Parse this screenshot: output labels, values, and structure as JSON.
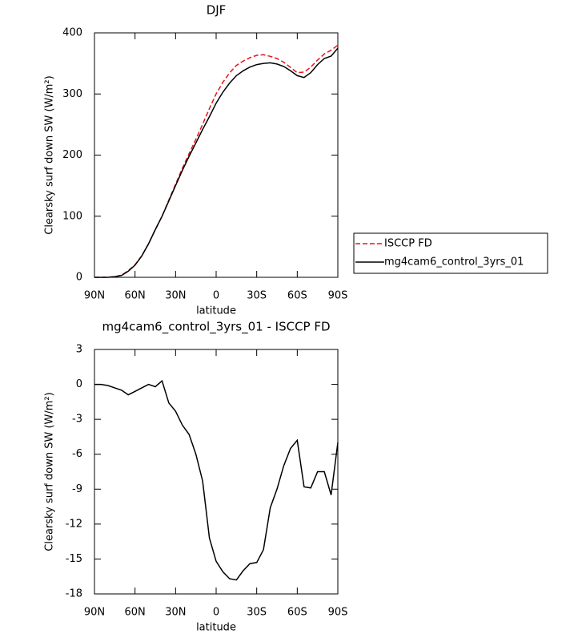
{
  "chart_data": [
    {
      "type": "line",
      "title": "DJF",
      "xlabel": "latitude",
      "ylabel": "Clearsky surf down SW (W/m²)",
      "x": [
        90,
        85,
        80,
        75,
        70,
        65,
        60,
        55,
        50,
        45,
        40,
        35,
        30,
        25,
        20,
        15,
        10,
        5,
        0,
        -5,
        -10,
        -15,
        -20,
        -25,
        -30,
        -35,
        -40,
        -45,
        -50,
        -55,
        -60,
        -65,
        -70,
        -75,
        -80,
        -85,
        -90
      ],
      "series": [
        {
          "name": "ISCCP FD",
          "color": "#e8141c",
          "style": "dashed",
          "values": [
            0,
            0,
            0.1,
            1.3,
            3.5,
            10.9,
            20.6,
            35.3,
            55,
            78.2,
            99.7,
            126.6,
            152.3,
            178.5,
            202.3,
            226,
            250.3,
            276.2,
            300.2,
            319.1,
            334.7,
            346.8,
            354,
            359.4,
            363.3,
            364.2,
            361.6,
            358,
            352,
            343.5,
            334.8,
            335.8,
            343.9,
            355.5,
            365.5,
            371.5,
            380
          ]
        },
        {
          "name": "mg4cam6_control_3yrs_01",
          "color": "#000000",
          "style": "solid",
          "values": [
            0,
            0,
            0,
            1,
            3,
            10,
            20,
            35,
            55,
            78,
            100,
            125,
            150,
            175,
            198,
            220,
            242,
            263,
            285,
            303,
            318,
            330,
            338,
            344,
            348,
            350,
            351,
            349,
            345,
            338,
            330,
            327,
            335,
            348,
            358,
            362,
            375
          ]
        }
      ],
      "xlim": [
        90,
        -90
      ],
      "xticks": [
        {
          "value": 90,
          "label": "90N"
        },
        {
          "value": 60,
          "label": "60N"
        },
        {
          "value": 30,
          "label": "30N"
        },
        0,
        {
          "value": -30,
          "label": "30S"
        },
        {
          "value": -60,
          "label": "60S"
        },
        {
          "value": -90,
          "label": "90S"
        }
      ],
      "ylim": [
        0,
        400
      ],
      "yticks": [
        0,
        100,
        200,
        300,
        400
      ],
      "legend": "right"
    },
    {
      "type": "line",
      "title": "mg4cam6_control_3yrs_01 - ISCCP FD",
      "xlabel": "latitude",
      "ylabel": "Clearsky surf down SW (W/m²)",
      "x": [
        90,
        85,
        80,
        75,
        70,
        65,
        60,
        55,
        50,
        45,
        40,
        35,
        30,
        25,
        20,
        15,
        10,
        5,
        0,
        -5,
        -10,
        -15,
        -20,
        -25,
        -30,
        -35,
        -40,
        -45,
        -50,
        -55,
        -60,
        -65,
        -70,
        -75,
        -80,
        -85,
        -90
      ],
      "values": [
        0,
        0,
        -0.1,
        -0.3,
        -0.5,
        -0.9,
        -0.6,
        -0.3,
        0,
        -0.2,
        0.3,
        -1.6,
        -2.3,
        -3.5,
        -4.3,
        -6,
        -8.3,
        -13.2,
        -15.2,
        -16.1,
        -16.7,
        -16.8,
        -16,
        -15.4,
        -15.3,
        -14.2,
        -10.6,
        -9,
        -7,
        -5.5,
        -4.8,
        -8.8,
        -8.9,
        -7.5,
        -7.5,
        -9.5,
        -5
      ],
      "color": "#000000",
      "xlim": [
        90,
        -90
      ],
      "xticks": [
        {
          "value": 90,
          "label": "90N"
        },
        {
          "value": 60,
          "label": "60N"
        },
        {
          "value": 30,
          "label": "30N"
        },
        0,
        {
          "value": -30,
          "label": "30S"
        },
        {
          "value": -60,
          "label": "60S"
        },
        {
          "value": -90,
          "label": "90S"
        }
      ],
      "ylim": [
        -18,
        3
      ],
      "yticks": [
        -18,
        -15,
        -12,
        -9,
        -6,
        -3,
        0,
        3
      ]
    }
  ]
}
